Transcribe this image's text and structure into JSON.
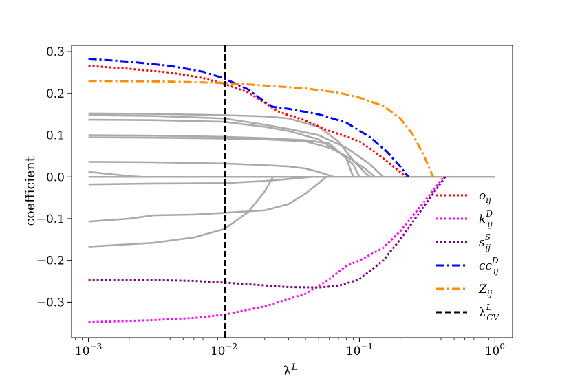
{
  "chart_data": {
    "type": "line",
    "xlabel": "λ",
    "xlabel_sup": "L",
    "ylabel": "coefficient",
    "xscale": "log",
    "xlim": [
      0.00075,
      1.35
    ],
    "ylim": [
      -0.385,
      0.315
    ],
    "x_ticks": [
      {
        "value": 0.001,
        "base": "10",
        "exp": "−3"
      },
      {
        "value": 0.01,
        "base": "10",
        "exp": "−2"
      },
      {
        "value": 0.1,
        "base": "10",
        "exp": "−1"
      },
      {
        "value": 1,
        "base": "10",
        "exp": "0"
      }
    ],
    "y_ticks": [
      {
        "value": 0.3,
        "label": "0.3"
      },
      {
        "value": 0.2,
        "label": "0.2"
      },
      {
        "value": 0.1,
        "label": "0.1"
      },
      {
        "value": 0.0,
        "label": "0.0"
      },
      {
        "value": -0.1,
        "label": "−0.1"
      },
      {
        "value": -0.2,
        "label": "−0.2"
      },
      {
        "value": -0.3,
        "label": "−0.3"
      }
    ],
    "legend_position": "lower-right",
    "vline": {
      "x": 0.0102,
      "label": "λ",
      "sup": "L",
      "sub": "CV",
      "color": "#000000"
    },
    "gray_color": "#aaaaaa",
    "gray_series": [
      [
        [
          0.001,
          0.152
        ],
        [
          0.003,
          0.151
        ],
        [
          0.01,
          0.148
        ],
        [
          0.02,
          0.145
        ],
        [
          0.03,
          0.14
        ],
        [
          0.05,
          0.12
        ],
        [
          0.07,
          0.085
        ],
        [
          0.09,
          0.04
        ],
        [
          0.11,
          0.01
        ],
        [
          0.12,
          0.0
        ]
      ],
      [
        [
          0.001,
          0.148
        ],
        [
          0.003,
          0.146
        ],
        [
          0.01,
          0.14
        ],
        [
          0.02,
          0.125
        ],
        [
          0.03,
          0.115
        ],
        [
          0.05,
          0.1
        ],
        [
          0.08,
          0.07
        ],
        [
          0.12,
          0.03
        ],
        [
          0.15,
          0.0
        ]
      ],
      [
        [
          0.001,
          0.137
        ],
        [
          0.003,
          0.136
        ],
        [
          0.01,
          0.132
        ],
        [
          0.02,
          0.12
        ],
        [
          0.03,
          0.11
        ],
        [
          0.05,
          0.09
        ],
        [
          0.07,
          0.06
        ],
        [
          0.09,
          0.03
        ],
        [
          0.1,
          0.0
        ]
      ],
      [
        [
          0.001,
          0.1
        ],
        [
          0.003,
          0.099
        ],
        [
          0.01,
          0.096
        ],
        [
          0.02,
          0.093
        ],
        [
          0.04,
          0.088
        ],
        [
          0.06,
          0.08
        ],
        [
          0.08,
          0.045
        ],
        [
          0.09,
          0.0
        ]
      ],
      [
        [
          0.001,
          0.095
        ],
        [
          0.003,
          0.094
        ],
        [
          0.01,
          0.092
        ],
        [
          0.02,
          0.09
        ],
        [
          0.04,
          0.085
        ],
        [
          0.06,
          0.07
        ],
        [
          0.08,
          0.05
        ],
        [
          0.11,
          0.02
        ],
        [
          0.13,
          0.0
        ]
      ],
      [
        [
          0.001,
          0.036
        ],
        [
          0.003,
          0.035
        ],
        [
          0.01,
          0.032
        ],
        [
          0.02,
          0.028
        ],
        [
          0.03,
          0.025
        ],
        [
          0.04,
          0.02
        ],
        [
          0.05,
          0.012
        ],
        [
          0.065,
          0.0
        ]
      ],
      [
        [
          0.001,
          0.012
        ],
        [
          0.002,
          0.002
        ],
        [
          0.0025,
          0.0
        ]
      ],
      [
        [
          0.001,
          -0.018
        ],
        [
          0.003,
          -0.016
        ],
        [
          0.01,
          -0.015
        ],
        [
          0.02,
          -0.01
        ],
        [
          0.03,
          -0.005
        ],
        [
          0.045,
          0.0
        ]
      ],
      [
        [
          0.001,
          -0.107
        ],
        [
          0.002,
          -0.1
        ],
        [
          0.003,
          -0.092
        ],
        [
          0.006,
          -0.09
        ],
        [
          0.01,
          -0.086
        ],
        [
          0.02,
          -0.08
        ],
        [
          0.03,
          -0.065
        ],
        [
          0.04,
          -0.04
        ],
        [
          0.05,
          -0.015
        ],
        [
          0.057,
          0.0
        ]
      ],
      [
        [
          0.001,
          -0.167
        ],
        [
          0.003,
          -0.158
        ],
        [
          0.006,
          -0.145
        ],
        [
          0.01,
          -0.125
        ],
        [
          0.015,
          -0.085
        ],
        [
          0.02,
          -0.035
        ],
        [
          0.023,
          0.0
        ]
      ],
      [
        [
          0.001,
          0.0
        ],
        [
          1.0,
          0.0
        ]
      ]
    ],
    "series": [
      {
        "name": "o",
        "name_sub": "ij",
        "name_sup": "",
        "color": "#ff0000",
        "dash": "3,3",
        "points": [
          [
            0.001,
            0.266
          ],
          [
            0.002,
            0.259
          ],
          [
            0.004,
            0.25
          ],
          [
            0.007,
            0.237
          ],
          [
            0.01,
            0.223
          ],
          [
            0.015,
            0.203
          ],
          [
            0.02,
            0.178
          ],
          [
            0.025,
            0.157
          ],
          [
            0.03,
            0.148
          ],
          [
            0.04,
            0.135
          ],
          [
            0.06,
            0.11
          ],
          [
            0.08,
            0.097
          ],
          [
            0.1,
            0.085
          ],
          [
            0.13,
            0.06
          ],
          [
            0.17,
            0.03
          ],
          [
            0.2,
            0.012
          ],
          [
            0.22,
            0.0
          ]
        ]
      },
      {
        "name": "k",
        "name_sub": "ij",
        "name_sup": "D",
        "color": "#ff00ff",
        "dash": "3,3",
        "points": [
          [
            0.001,
            -0.348
          ],
          [
            0.003,
            -0.343
          ],
          [
            0.006,
            -0.338
          ],
          [
            0.01,
            -0.33
          ],
          [
            0.02,
            -0.31
          ],
          [
            0.04,
            -0.28
          ],
          [
            0.06,
            -0.245
          ],
          [
            0.08,
            -0.213
          ],
          [
            0.1,
            -0.2
          ],
          [
            0.15,
            -0.17
          ],
          [
            0.2,
            -0.13
          ],
          [
            0.3,
            -0.06
          ],
          [
            0.42,
            0.0
          ]
        ]
      },
      {
        "name": "s",
        "name_sub": "ij",
        "name_sup": "S",
        "color": "#800080",
        "dash": "3,3",
        "points": [
          [
            0.001,
            -0.246
          ],
          [
            0.003,
            -0.247
          ],
          [
            0.006,
            -0.249
          ],
          [
            0.01,
            -0.253
          ],
          [
            0.02,
            -0.26
          ],
          [
            0.03,
            -0.264
          ],
          [
            0.05,
            -0.265
          ],
          [
            0.07,
            -0.261
          ],
          [
            0.1,
            -0.245
          ],
          [
            0.15,
            -0.2
          ],
          [
            0.2,
            -0.15
          ],
          [
            0.3,
            -0.07
          ],
          [
            0.43,
            0.0
          ]
        ]
      },
      {
        "name": "cc",
        "name_sub": "ij",
        "name_sup": "D",
        "color": "#0000ff",
        "dash": "12,4,3,4",
        "points": [
          [
            0.001,
            0.283
          ],
          [
            0.002,
            0.276
          ],
          [
            0.004,
            0.266
          ],
          [
            0.007,
            0.252
          ],
          [
            0.01,
            0.236
          ],
          [
            0.015,
            0.21
          ],
          [
            0.02,
            0.18
          ],
          [
            0.023,
            0.168
          ],
          [
            0.03,
            0.163
          ],
          [
            0.05,
            0.15
          ],
          [
            0.08,
            0.13
          ],
          [
            0.12,
            0.095
          ],
          [
            0.16,
            0.06
          ],
          [
            0.2,
            0.025
          ],
          [
            0.23,
            0.0
          ]
        ]
      },
      {
        "name": "Z",
        "name_sub": "ij",
        "name_sup": "",
        "color": "#ff8c00",
        "dash": "12,4,3,4",
        "points": [
          [
            0.001,
            0.23
          ],
          [
            0.003,
            0.229
          ],
          [
            0.006,
            0.227
          ],
          [
            0.01,
            0.225
          ],
          [
            0.02,
            0.219
          ],
          [
            0.04,
            0.212
          ],
          [
            0.07,
            0.202
          ],
          [
            0.1,
            0.19
          ],
          [
            0.15,
            0.17
          ],
          [
            0.2,
            0.14
          ],
          [
            0.25,
            0.1
          ],
          [
            0.3,
            0.05
          ],
          [
            0.35,
            0.0
          ]
        ]
      }
    ]
  }
}
